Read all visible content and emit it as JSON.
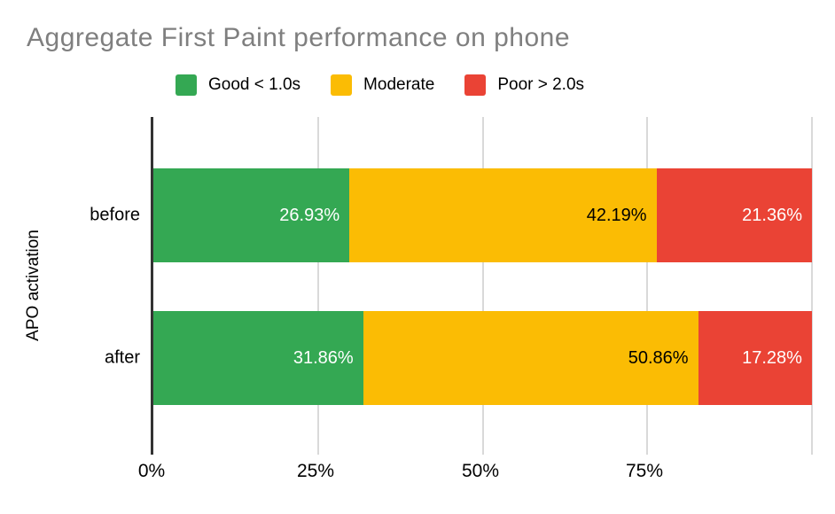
{
  "title": {
    "text": "Aggregate First Paint performance on phone",
    "color": "#7f7f7f"
  },
  "legend": {
    "items": [
      {
        "label": "Good < 1.0s",
        "color": "#34a853"
      },
      {
        "label": "Moderate",
        "color": "#fbbc04"
      },
      {
        "label": "Poor > 2.0s",
        "color": "#ea4335"
      }
    ]
  },
  "axes": {
    "y_label": "APO activation",
    "categories": [
      "before",
      "after"
    ],
    "x_ticks": [
      "0%",
      "25%",
      "50%",
      "75%"
    ],
    "grid_color": "#d9d9d9",
    "axis_color": "#333333"
  },
  "chart_data": {
    "type": "bar",
    "orientation": "horizontal",
    "stacked": true,
    "normalized_to_100_percent": true,
    "title": "Aggregate First Paint performance on phone",
    "xlabel": "",
    "ylabel": "APO activation",
    "categories": [
      "before",
      "after"
    ],
    "series": [
      {
        "name": "Good < 1.0s",
        "color": "#34a853",
        "label_text_color": "#ffffff",
        "values": [
          26.93,
          31.86
        ]
      },
      {
        "name": "Moderate",
        "color": "#fbbc04",
        "label_text_color": "#000000",
        "values": [
          42.19,
          50.86
        ]
      },
      {
        "name": "Poor > 2.0s",
        "color": "#ea4335",
        "label_text_color": "#ffffff",
        "values": [
          21.36,
          17.28
        ]
      }
    ],
    "data_labels": [
      "26.93%",
      "42.19%",
      "21.36%",
      "31.86%",
      "50.86%",
      "17.28%"
    ],
    "xlim": [
      0,
      100
    ],
    "x_tick_labels": [
      "0%",
      "25%",
      "50%",
      "75%"
    ],
    "grid": true,
    "legend_position": "top"
  }
}
